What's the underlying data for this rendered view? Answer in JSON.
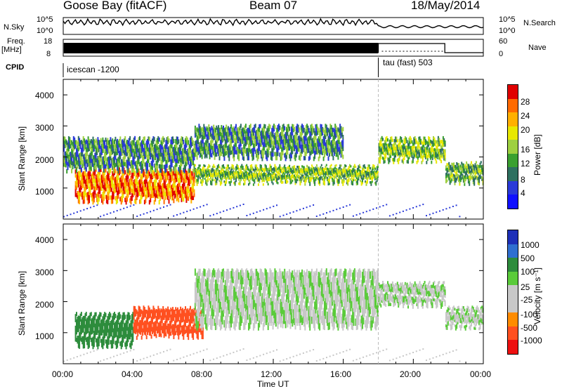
{
  "header": {
    "station": "Goose Bay (fitACF)",
    "beam": "Beam 07",
    "date": "18/May/2014"
  },
  "strips": {
    "nsky_label": "N.Sky",
    "nsky_ticks": [
      "10^5",
      "10^0"
    ],
    "nsearch_label": "N.Search",
    "freq_label": "Freq.",
    "freq_unit": "[MHz]",
    "freq_ticks": [
      "18",
      "8"
    ],
    "nave_label": "Nave",
    "nave_ticks": [
      "60",
      "0"
    ],
    "cpid_label": "CPID",
    "cpid_modes": [
      "icescan -1200",
      "tau (fast) 503"
    ]
  },
  "colorbars": {
    "power_label": "Power [dB]",
    "power_ticks": [
      "28",
      "24",
      "20",
      "16",
      "12",
      "8",
      "4"
    ],
    "power_colors": [
      "#e00000",
      "#ff6a00",
      "#ffb000",
      "#e8e800",
      "#9ed040",
      "#3aa030",
      "#2e7060",
      "#2a3ad8",
      "#1010ff"
    ],
    "velocity_label": "Velocity [m s⁻¹]",
    "velocity_ticks": [
      "1000",
      "500",
      "100",
      "25",
      "-25",
      "-100",
      "-500",
      "-1000"
    ],
    "velocity_colors": [
      "#1d2fb8",
      "#2f6fd0",
      "#2d8c3c",
      "#5acb3a",
      "#c8c8c8",
      "#c8c8c8",
      "#ff8c00",
      "#ff5020",
      "#ee1010"
    ]
  },
  "axes": {
    "ylabel": "Slant Range [km]",
    "yticks": [
      "4000",
      "3000",
      "2000",
      "1000"
    ],
    "xticks": [
      "00:00",
      "04:00",
      "08:00",
      "12:00",
      "16:00",
      "20:00",
      "00:00"
    ],
    "xlabel": "Time UT"
  },
  "chart_data": [
    {
      "type": "heatmap",
      "title": "",
      "quantity": "Power",
      "unit": "dB",
      "xlabel": "Time UT",
      "ylabel": "Slant Range [km]",
      "xlim": [
        "00:00",
        "24:00"
      ],
      "ylim": [
        0,
        4500
      ],
      "colorbar_range": [
        0,
        30
      ],
      "regions": [
        {
          "t": [
            "00:40",
            "07:30"
          ],
          "range_km": [
            600,
            1600
          ],
          "value_db": 24
        },
        {
          "t": [
            "00:00",
            "07:30"
          ],
          "range_km": [
            1600,
            2600
          ],
          "value_db": 10
        },
        {
          "t": [
            "07:30",
            "18:00"
          ],
          "range_km": [
            1200,
            1700
          ],
          "value_db": 14
        },
        {
          "t": [
            "07:30",
            "16:00"
          ],
          "range_km": [
            2000,
            3000
          ],
          "value_db": 10
        },
        {
          "t": [
            "18:00",
            "21:50"
          ],
          "range_km": [
            1900,
            2600
          ],
          "value_db": 14
        },
        {
          "t": [
            "21:50",
            "24:00"
          ],
          "range_km": [
            1200,
            1800
          ],
          "value_db": 12
        }
      ]
    },
    {
      "type": "heatmap",
      "title": "",
      "quantity": "Velocity",
      "unit": "m s-1",
      "xlabel": "Time UT",
      "ylabel": "Slant Range [km]",
      "xlim": [
        "00:00",
        "24:00"
      ],
      "ylim": [
        0,
        4500
      ],
      "colorbar_range": [
        -1000,
        1000
      ],
      "regions": [
        {
          "t": [
            "00:40",
            "04:00"
          ],
          "range_km": [
            600,
            1600
          ],
          "value_ms": 100
        },
        {
          "t": [
            "04:00",
            "08:00"
          ],
          "range_km": [
            900,
            1800
          ],
          "value_ms": -500
        },
        {
          "t": [
            "07:30",
            "18:00"
          ],
          "range_km": [
            1200,
            3000
          ],
          "value_ms": 0
        },
        {
          "t": [
            "18:00",
            "21:50"
          ],
          "range_km": [
            1900,
            2600
          ],
          "value_ms": 0
        },
        {
          "t": [
            "21:50",
            "24:00"
          ],
          "range_km": [
            1200,
            1800
          ],
          "value_ms": 0
        }
      ]
    }
  ]
}
